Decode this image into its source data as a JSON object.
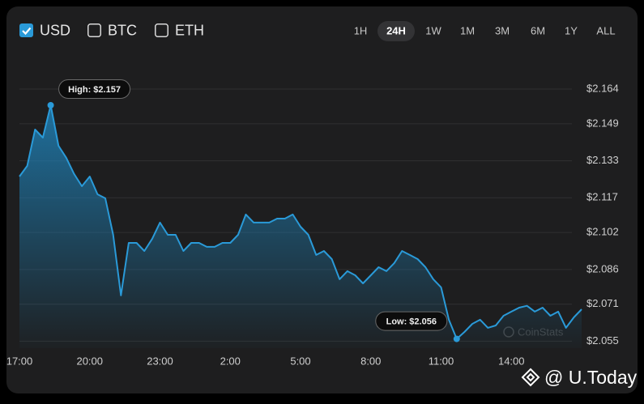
{
  "currencies": [
    {
      "label": "USD",
      "checked": true
    },
    {
      "label": "BTC",
      "checked": false
    },
    {
      "label": "ETH",
      "checked": false
    }
  ],
  "ranges": [
    "1H",
    "24H",
    "1W",
    "1M",
    "3M",
    "6M",
    "1Y",
    "ALL"
  ],
  "active_range": "24H",
  "watermark": "CoinStats",
  "overlay": "@ U.Today",
  "chart_data": {
    "type": "area",
    "color": "#2a9ad8",
    "categories": [
      "17:00",
      "17:20",
      "17:40",
      "18:00",
      "18:20",
      "18:40",
      "19:00",
      "19:20",
      "19:40",
      "20:00",
      "20:20",
      "20:40",
      "21:00",
      "21:20",
      "21:40",
      "22:00",
      "22:20",
      "22:40",
      "23:00",
      "23:20",
      "23:40",
      "0:00",
      "0:20",
      "0:40",
      "1:00",
      "1:20",
      "1:40",
      "2:00",
      "2:20",
      "2:40",
      "3:00",
      "3:20",
      "3:40",
      "4:00",
      "4:20",
      "4:40",
      "5:00",
      "5:20",
      "5:40",
      "6:00",
      "6:20",
      "6:40",
      "7:00",
      "7:20",
      "7:40",
      "8:00",
      "8:20",
      "8:40",
      "9:00",
      "9:20",
      "9:40",
      "10:00",
      "10:20",
      "10:40",
      "11:00",
      "11:20",
      "11:40",
      "12:00",
      "12:20",
      "12:40",
      "13:00",
      "13:20",
      "13:40",
      "14:00",
      "14:20",
      "14:40",
      "15:00",
      "15:20",
      "15:40",
      "16:00",
      "16:20",
      "16:40",
      "17:00"
    ],
    "values": [
      2.1262,
      2.1308,
      2.1465,
      2.143,
      2.157,
      2.1395,
      2.1343,
      2.1273,
      2.122,
      2.1262,
      2.1185,
      2.1168,
      2.101,
      2.0748,
      2.0975,
      2.0975,
      2.094,
      2.0993,
      2.1063,
      2.101,
      2.101,
      2.094,
      2.0975,
      2.0975,
      2.0958,
      2.0958,
      2.0975,
      2.0975,
      2.101,
      2.1098,
      2.1063,
      2.1063,
      2.1063,
      2.108,
      2.108,
      2.1098,
      2.1045,
      2.101,
      2.0923,
      2.094,
      2.0905,
      2.0818,
      2.0853,
      2.0835,
      2.08,
      2.0835,
      2.087,
      2.0853,
      2.0888,
      2.094,
      2.0923,
      2.0905,
      2.087,
      2.0818,
      2.0783,
      2.0643,
      2.056,
      2.059,
      2.0625,
      2.0643,
      2.0608,
      2.0618,
      2.066,
      2.0678,
      2.0695,
      2.0703,
      2.0678,
      2.0695,
      2.066,
      2.0678,
      2.0608,
      2.0653,
      2.0688
    ],
    "xticks": [
      "20:00",
      "23:00",
      "2:00",
      "5:00",
      "8:00",
      "11:00",
      "14:00",
      "17:00"
    ],
    "ylim": [
      2.052,
      2.171
    ],
    "yticks": [
      {
        "value": 2.055,
        "label": "$2.055"
      },
      {
        "value": 2.071,
        "label": "$2.071"
      },
      {
        "value": 2.086,
        "label": "$2.086"
      },
      {
        "value": 2.102,
        "label": "$2.102"
      },
      {
        "value": 2.117,
        "label": "$2.117"
      },
      {
        "value": 2.133,
        "label": "$2.133"
      },
      {
        "value": 2.149,
        "label": "$2.149"
      },
      {
        "value": 2.164,
        "label": "$2.164"
      }
    ],
    "grid": true,
    "annotations": [
      {
        "label": "High: $2.157",
        "x": "18:20"
      },
      {
        "label": "Low: $2.056",
        "x": "11:40"
      }
    ]
  }
}
